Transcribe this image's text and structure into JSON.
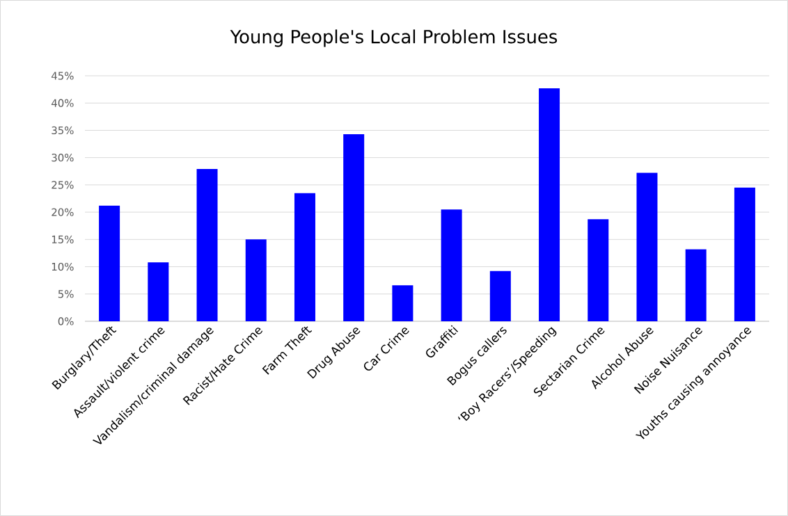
{
  "chart_data": {
    "type": "bar",
    "title": "Young People's Local Problem Issues",
    "categories": [
      "Burglary/Theft",
      "Assault/violent crime",
      "Vandalism/criminal damage",
      "Racist/Hate Crime",
      "Farm Theft",
      "Drug Abuse",
      "Car Crime",
      "Graffiti",
      "Bogus callers",
      "‘Boy Racers’/Speeding",
      "Sectarian Crime",
      "Alcohol Abuse",
      "Noise Nuisance",
      "Youths causing annoyance"
    ],
    "values": [
      21.2,
      10.8,
      27.9,
      15.0,
      23.5,
      34.3,
      6.6,
      20.5,
      9.2,
      42.7,
      18.7,
      27.2,
      13.2,
      24.5
    ],
    "color": "#0000ff",
    "ylim": [
      0,
      45
    ],
    "yticks": [
      {
        "value": 0,
        "label": "0%"
      },
      {
        "value": 5,
        "label": "5%"
      },
      {
        "value": 10,
        "label": "10%"
      },
      {
        "value": 15,
        "label": "15%"
      },
      {
        "value": 20,
        "label": "20%"
      },
      {
        "value": 25,
        "label": "25%"
      },
      {
        "value": 30,
        "label": "30%"
      },
      {
        "value": 35,
        "label": "35%"
      },
      {
        "value": 40,
        "label": "40%"
      },
      {
        "value": 45,
        "label": "45%"
      }
    ],
    "grid": "y"
  }
}
